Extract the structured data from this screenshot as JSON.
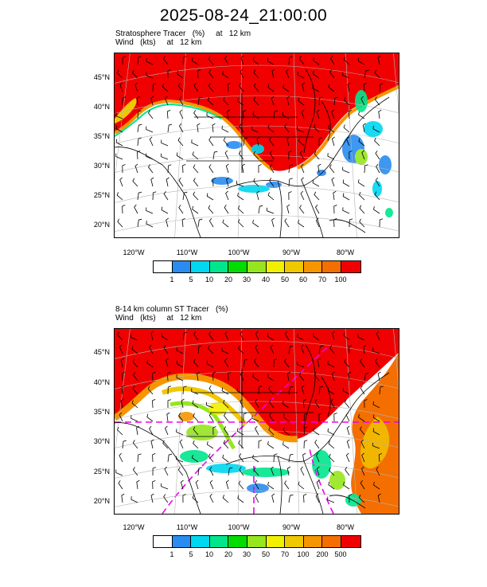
{
  "title": "2025-08-24_21:00:00",
  "colors": {
    "levels": [
      "#ffffff",
      "#2a8cf0",
      "#00d7f0",
      "#00e68c",
      "#00dc00",
      "#96e61e",
      "#f0f000",
      "#f0c800",
      "#f59600",
      "#f56e00",
      "#f00000"
    ],
    "contour_magenta": "#f000f0"
  },
  "panels": [
    {
      "subtitle_line1": "Stratosphere Tracer   (%)     at   12 km",
      "subtitle_line2": "Wind   (kts)     at   12 km",
      "lat_labels": [
        "45°N",
        "40°N",
        "35°N",
        "30°N",
        "25°N",
        "20°N"
      ],
      "lon_labels": [
        "120°W",
        "110°W",
        "100°W",
        "90°W",
        "80°W"
      ],
      "colorbar_labels": [
        "1",
        "5",
        "10",
        "20",
        "30",
        "40",
        "50",
        "60",
        "70",
        "100"
      ]
    },
    {
      "subtitle_line1": "8-14 km column ST Tracer   (%)",
      "subtitle_line2": "Wind   (kts)     at   12 km",
      "lat_labels": [
        "45°N",
        "40°N",
        "35°N",
        "30°N",
        "25°N",
        "20°N"
      ],
      "lon_labels": [
        "120°W",
        "110°W",
        "100°W",
        "90°W",
        "80°W"
      ],
      "colorbar_labels": [
        "1",
        "5",
        "10",
        "20",
        "30",
        "50",
        "70",
        "100",
        "200",
        "500"
      ]
    }
  ]
}
